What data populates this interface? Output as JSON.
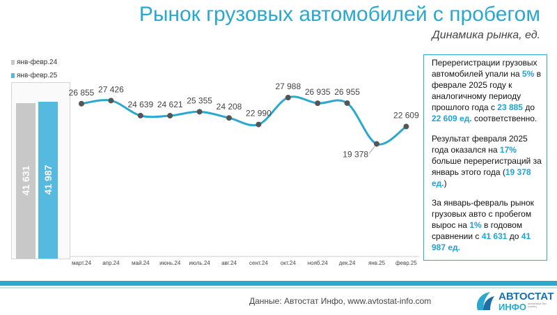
{
  "header": {
    "title": "Рынок грузовых автомобилей с пробегом",
    "subtitle": "Динамика рынка, ед."
  },
  "chart_data": [
    {
      "type": "bar",
      "categories": [
        "янв-февр.24",
        "янв-февр.25"
      ],
      "values": [
        41631,
        41987
      ],
      "value_labels": [
        "41 631",
        "41 987"
      ],
      "legend": [
        "янв-февр.24",
        "янв-февр.25"
      ],
      "legend_position": "top-left",
      "colors": [
        "#c8c8c8",
        "#56b9df"
      ],
      "ylim": [
        0,
        47000
      ]
    },
    {
      "type": "line",
      "categories": [
        "март.24",
        "апр.24",
        "май.24",
        "июнь.24",
        "июль.24",
        "авг.24",
        "сент.24",
        "окт.24",
        "нояб.24",
        "дек.24",
        "янв.25",
        "февр.25"
      ],
      "values": [
        26855,
        27426,
        24639,
        24621,
        25355,
        24208,
        22990,
        27988,
        26935,
        26955,
        19378,
        22609
      ],
      "value_labels": [
        "26 855",
        "27 426",
        "24 639",
        "24 621",
        "25 355",
        "24 208",
        "22 990",
        "27 988",
        "26 935",
        "26 955",
        "19 378",
        "22 609"
      ],
      "line_color": "#2aa8d0",
      "marker_color": "#555555",
      "grid": false
    }
  ],
  "info": {
    "p1": [
      "Перерегистрации грузовых автомобилей упали на ",
      "5%",
      " в феврале 2025 году к аналогичному периоду прошлого года с ",
      "23 885",
      " до ",
      "22 609 ед.",
      " соответственно."
    ],
    "p2": [
      "Результат февраля 2025 года оказался на ",
      "17%",
      " больше перерегистраций за январь этого года (",
      "19 378 ед.",
      ")"
    ],
    "p3": [
      "За январь-февраль рынок грузовых авто с пробегом вырос на ",
      "1%",
      " в годовом сравнении с ",
      "41 631",
      " до ",
      "41 987 ед.",
      ""
    ]
  },
  "footer": {
    "source": "Данные: Автостат Инфо, www.avtostat-info.com",
    "logo_top": "АВТОСТАТ",
    "logo_bottom": "ИНФО",
    "logo_tagline": "аналитика без границ"
  },
  "colors": {
    "accent": "#2aa8d0",
    "gray_bar": "#c8c8c8",
    "blue_bar": "#56b9df",
    "highlight_text": "#1fa3d4"
  }
}
